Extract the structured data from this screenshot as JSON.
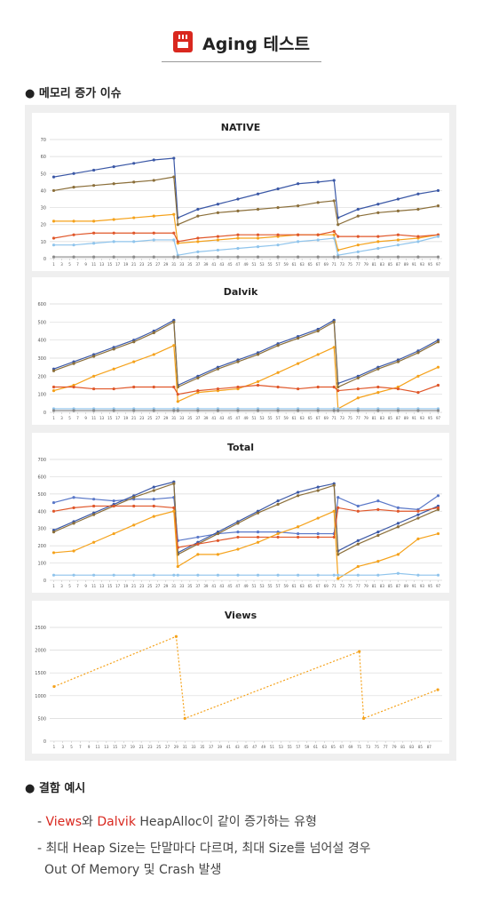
{
  "header": {
    "title": "Aging 테스트"
  },
  "sections": [
    {
      "title": "메모리 증가 이슈"
    },
    {
      "title": "결함 예시",
      "items": [
        [
          "Views",
          "와 ",
          "Dalvik",
          " HeapAlloc이 같이 증가하는 유형"
        ],
        [
          "최대 Heap Size는 단말마다 다르며, 최대 Size를 넘어설 경우",
          "Out Of Memory 및 Crash 발생"
        ]
      ]
    }
  ],
  "chart_data": [
    {
      "type": "line",
      "title": "NATIVE",
      "x": [
        1,
        6,
        11,
        16,
        21,
        26,
        31,
        32,
        37,
        42,
        47,
        52,
        57,
        62,
        67,
        71,
        72,
        77,
        82,
        87,
        92,
        97
      ],
      "xlim": [
        0,
        98
      ],
      "xticks": [
        1,
        3,
        5,
        7,
        9,
        11,
        13,
        15,
        17,
        19,
        21,
        23,
        25,
        27,
        29,
        31,
        33,
        35,
        37,
        39,
        41,
        43,
        45,
        47,
        49,
        51,
        53,
        55,
        57,
        59,
        61,
        63,
        65,
        67,
        69,
        71,
        73,
        75,
        77,
        79,
        81,
        83,
        85,
        87,
        89,
        91,
        93,
        95,
        97
      ],
      "ylim": [
        0,
        70
      ],
      "yticks": [
        0,
        10,
        20,
        30,
        40,
        50,
        60,
        70
      ],
      "grid": true,
      "series": [
        {
          "color": "#3b58a6",
          "values": [
            48,
            50,
            52,
            54,
            56,
            58,
            59,
            24,
            29,
            32,
            35,
            38,
            41,
            44,
            45,
            46,
            24,
            29,
            32,
            35,
            38,
            40
          ]
        },
        {
          "color": "#8b6f3a",
          "values": [
            40,
            42,
            43,
            44,
            45,
            46,
            48,
            20,
            25,
            27,
            28,
            29,
            30,
            31,
            33,
            34,
            20,
            25,
            27,
            28,
            29,
            31
          ]
        },
        {
          "color": "#f5a21b",
          "values": [
            22,
            22,
            22,
            23,
            24,
            25,
            26,
            9,
            10,
            11,
            12,
            12,
            13,
            14,
            14,
            14,
            5,
            8,
            10,
            11,
            12,
            14
          ]
        },
        {
          "color": "#e0572a",
          "values": [
            12,
            14,
            15,
            15,
            15,
            15,
            15,
            10,
            12,
            13,
            14,
            14,
            14,
            14,
            14,
            16,
            13,
            13,
            13,
            14,
            13,
            14
          ]
        },
        {
          "color": "#8fc4ec",
          "values": [
            8,
            8,
            9,
            10,
            10,
            11,
            11,
            2,
            4,
            5,
            6,
            7,
            8,
            10,
            11,
            12,
            2,
            4,
            6,
            8,
            10,
            13
          ]
        },
        {
          "color": "#8a8a8a",
          "values": [
            1,
            1,
            1,
            1,
            1,
            1,
            1,
            1,
            1,
            1,
            1,
            1,
            1,
            1,
            1,
            1,
            1,
            1,
            1,
            1,
            1,
            1
          ]
        }
      ]
    },
    {
      "type": "line",
      "title": "Dalvik",
      "x": [
        1,
        6,
        11,
        16,
        21,
        26,
        31,
        32,
        37,
        42,
        47,
        52,
        57,
        62,
        67,
        71,
        72,
        77,
        82,
        87,
        92,
        97
      ],
      "xlim": [
        0,
        98
      ],
      "xticks": [
        1,
        3,
        5,
        7,
        9,
        11,
        13,
        15,
        17,
        19,
        21,
        23,
        25,
        27,
        29,
        31,
        33,
        35,
        37,
        39,
        41,
        43,
        45,
        47,
        49,
        51,
        53,
        55,
        57,
        59,
        61,
        63,
        65,
        67,
        69,
        71,
        73,
        75,
        77,
        79,
        81,
        83,
        85,
        87,
        89,
        91,
        93,
        95,
        97
      ],
      "ylim": [
        0,
        600
      ],
      "yticks": [
        0,
        100,
        200,
        300,
        400,
        500,
        600
      ],
      "grid": true,
      "series": [
        {
          "color": "#3b58a6",
          "values": [
            240,
            280,
            320,
            360,
            400,
            450,
            510,
            150,
            200,
            250,
            290,
            330,
            380,
            420,
            460,
            510,
            160,
            200,
            250,
            290,
            340,
            400
          ]
        },
        {
          "color": "#8b6f3a",
          "values": [
            230,
            270,
            310,
            350,
            390,
            440,
            500,
            140,
            190,
            240,
            280,
            320,
            370,
            410,
            450,
            500,
            140,
            190,
            240,
            280,
            330,
            390
          ]
        },
        {
          "color": "#f5a21b",
          "values": [
            120,
            150,
            200,
            240,
            280,
            320,
            370,
            60,
            110,
            120,
            130,
            170,
            220,
            270,
            320,
            360,
            20,
            80,
            110,
            140,
            200,
            250
          ]
        },
        {
          "color": "#e0572a",
          "values": [
            140,
            140,
            130,
            130,
            140,
            140,
            140,
            100,
            120,
            130,
            140,
            150,
            140,
            130,
            140,
            140,
            120,
            130,
            140,
            130,
            110,
            150
          ]
        },
        {
          "color": "#8fc4ec",
          "values": [
            20,
            20,
            20,
            20,
            20,
            20,
            20,
            20,
            20,
            20,
            20,
            20,
            20,
            20,
            20,
            20,
            20,
            20,
            20,
            20,
            20,
            20
          ]
        },
        {
          "color": "#8a8a8a",
          "values": [
            10,
            10,
            10,
            10,
            10,
            10,
            10,
            10,
            10,
            10,
            10,
            10,
            10,
            10,
            10,
            10,
            10,
            10,
            10,
            10,
            10,
            10
          ]
        }
      ]
    },
    {
      "type": "line",
      "title": "Total",
      "x": [
        1,
        6,
        11,
        16,
        21,
        26,
        31,
        32,
        37,
        42,
        47,
        52,
        57,
        62,
        67,
        71,
        72,
        77,
        82,
        87,
        92,
        97
      ],
      "xlim": [
        0,
        98
      ],
      "xticks": [
        1,
        3,
        5,
        7,
        9,
        11,
        13,
        15,
        17,
        19,
        21,
        23,
        25,
        27,
        29,
        31,
        33,
        35,
        37,
        39,
        41,
        43,
        45,
        47,
        49,
        51,
        53,
        55,
        57,
        59,
        61,
        63,
        65,
        67,
        69,
        71,
        73,
        75,
        77,
        79,
        81,
        83,
        85,
        87,
        89,
        91,
        93,
        95,
        97
      ],
      "ylim": [
        0,
        700
      ],
      "yticks": [
        0,
        100,
        200,
        300,
        400,
        500,
        600,
        700
      ],
      "grid": true,
      "series": [
        {
          "color": "#5a78c8",
          "values": [
            450,
            480,
            470,
            460,
            470,
            470,
            480,
            230,
            250,
            270,
            280,
            280,
            280,
            270,
            270,
            270,
            480,
            430,
            460,
            420,
            410,
            490
          ]
        },
        {
          "color": "#3b58a6",
          "values": [
            290,
            340,
            390,
            440,
            490,
            540,
            570,
            160,
            220,
            280,
            340,
            400,
            460,
            510,
            540,
            560,
            170,
            230,
            280,
            330,
            380,
            430
          ]
        },
        {
          "color": "#8b6f3a",
          "values": [
            280,
            330,
            380,
            430,
            480,
            520,
            560,
            150,
            210,
            270,
            330,
            390,
            440,
            490,
            520,
            550,
            150,
            210,
            260,
            310,
            360,
            410
          ]
        },
        {
          "color": "#e0572a",
          "values": [
            400,
            420,
            430,
            430,
            430,
            430,
            420,
            190,
            210,
            230,
            250,
            250,
            250,
            250,
            250,
            250,
            420,
            400,
            410,
            400,
            400,
            420
          ]
        },
        {
          "color": "#f5a21b",
          "values": [
            160,
            170,
            220,
            270,
            320,
            370,
            400,
            80,
            150,
            150,
            180,
            220,
            270,
            310,
            360,
            400,
            10,
            80,
            110,
            150,
            240,
            270
          ]
        },
        {
          "color": "#8fc4ec",
          "values": [
            30,
            30,
            30,
            30,
            30,
            30,
            30,
            30,
            30,
            30,
            30,
            30,
            30,
            30,
            30,
            30,
            30,
            30,
            30,
            40,
            30,
            30
          ]
        }
      ]
    },
    {
      "type": "line",
      "title": "Views",
      "x": [
        1,
        29,
        31,
        71,
        72,
        89
      ],
      "xlim": [
        0,
        90
      ],
      "xticks": [
        1,
        3,
        5,
        7,
        9,
        11,
        13,
        15,
        17,
        19,
        21,
        23,
        25,
        27,
        29,
        31,
        33,
        35,
        37,
        39,
        41,
        43,
        45,
        47,
        49,
        51,
        53,
        55,
        57,
        59,
        61,
        63,
        65,
        67,
        69,
        71,
        73,
        75,
        77,
        79,
        81,
        83,
        85,
        87
      ],
      "ylim": [
        0,
        2500
      ],
      "yticks": [
        0,
        500,
        1000,
        1500,
        2000,
        2500
      ],
      "grid": true,
      "series": [
        {
          "color": "#f5a21b",
          "values": [
            1200,
            2300,
            500,
            1970,
            500,
            1130
          ]
        }
      ]
    }
  ]
}
